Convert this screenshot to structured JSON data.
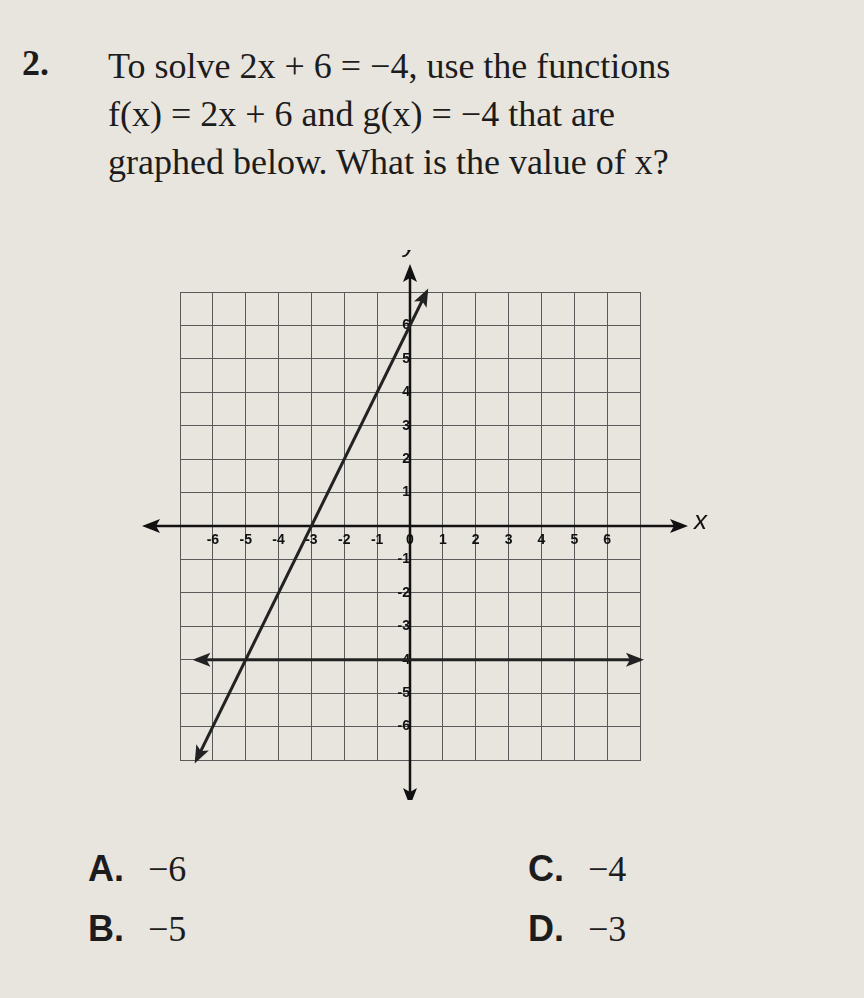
{
  "question": {
    "number": "2.",
    "lines": [
      "To solve 2x + 6 = −4, use the functions",
      "f(x) = 2x + 6 and g(x) = −4 that are",
      "graphed below. What is the value of x?"
    ]
  },
  "chart_data": {
    "type": "line",
    "x_label": "x",
    "y_label": "y",
    "series": [
      {
        "color": "#222222",
        "x": [
          -6.5,
          0.5
        ],
        "values": [
          -7,
          7
        ]
      },
      {
        "color": "#222222",
        "x": [
          -6.5,
          7
        ],
        "values": [
          -4,
          -4
        ]
      }
    ],
    "xlim": [
      -7,
      7
    ],
    "ylim": [
      -7,
      7
    ],
    "xticks": [
      -6,
      -5,
      -4,
      -3,
      -2,
      -1,
      0,
      1,
      2,
      3,
      4,
      5,
      6
    ],
    "yticks": [
      -6,
      -5,
      -4,
      -3,
      -2,
      -1,
      1,
      2,
      3,
      4,
      5,
      6
    ],
    "grid": true
  },
  "choices": [
    {
      "letter": "A.",
      "text": "−6"
    },
    {
      "letter": "B.",
      "text": "−5"
    },
    {
      "letter": "C.",
      "text": "−4"
    },
    {
      "letter": "D.",
      "text": "−3"
    }
  ]
}
